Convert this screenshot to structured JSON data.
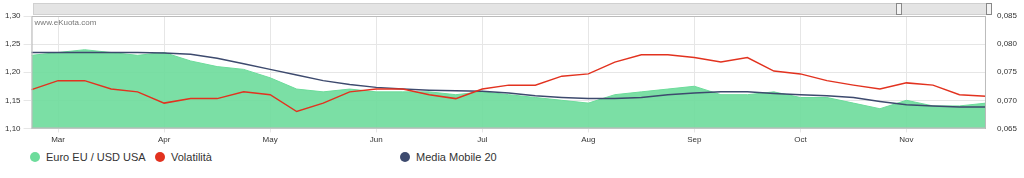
{
  "chart_data": {
    "type": "line",
    "annotation": "www.eKuota.com",
    "categories": [
      null,
      "Mar",
      null,
      null,
      null,
      "Apr",
      null,
      null,
      null,
      "May",
      null,
      null,
      null,
      "Jun",
      null,
      null,
      null,
      "Jul",
      null,
      null,
      null,
      "Aug",
      null,
      null,
      null,
      "Sep",
      null,
      null,
      null,
      "Oct",
      null,
      null,
      null,
      "Nov",
      null,
      null,
      null
    ],
    "series": [
      {
        "name": "Euro EU / USD USA",
        "type": "area",
        "color": "#6ddc9b",
        "values": [
          1.23,
          1.235,
          1.24,
          1.235,
          1.23,
          1.235,
          1.22,
          1.21,
          1.205,
          1.19,
          1.17,
          1.165,
          1.17,
          1.165,
          1.165,
          1.165,
          1.16,
          1.165,
          1.16,
          1.155,
          1.15,
          1.145,
          1.16,
          1.165,
          1.17,
          1.175,
          1.16,
          1.16,
          1.165,
          1.155,
          1.155,
          1.145,
          1.135,
          1.15,
          1.14,
          1.14,
          1.145
        ]
      },
      {
        "name": "Volatilità",
        "type": "line",
        "color": "#e2321f",
        "axis": "y2",
        "values": [
          0.0719,
          0.0735,
          0.0735,
          0.072,
          0.0715,
          0.0695,
          0.0703,
          0.0703,
          0.0715,
          0.071,
          0.068,
          0.0695,
          0.0715,
          0.072,
          0.072,
          0.071,
          0.0703,
          0.072,
          0.0727,
          0.0727,
          0.0743,
          0.0747,
          0.0768,
          0.0781,
          0.0781,
          0.0776,
          0.0768,
          0.0776,
          0.0752,
          0.0747,
          0.0735,
          0.0727,
          0.072,
          0.0731,
          0.0727,
          0.071,
          0.0707
        ]
      },
      {
        "name": "Media Mobile 20",
        "type": "line",
        "color": "#3d4a6e",
        "values": [
          1.235,
          1.235,
          1.235,
          1.235,
          1.235,
          1.234,
          1.232,
          1.225,
          1.215,
          1.205,
          1.195,
          1.185,
          1.178,
          1.173,
          1.17,
          1.168,
          1.167,
          1.166,
          1.163,
          1.158,
          1.155,
          1.153,
          1.153,
          1.155,
          1.16,
          1.163,
          1.165,
          1.165,
          1.162,
          1.16,
          1.158,
          1.155,
          1.148,
          1.142,
          1.14,
          1.138,
          1.138
        ]
      }
    ],
    "ylim": [
      1.1,
      1.3
    ],
    "yticks": [
      {
        "value": 1.1,
        "label": "1,10"
      },
      {
        "value": 1.15,
        "label": "1,15"
      },
      {
        "value": 1.2,
        "label": "1,20"
      },
      {
        "value": 1.25,
        "label": "1,25"
      },
      {
        "value": 1.3,
        "label": "1,30"
      }
    ],
    "y2lim": [
      0.065,
      0.085
    ],
    "y2ticks": [
      {
        "value": 0.065,
        "label": "0,065"
      },
      {
        "value": 0.07,
        "label": "0,070"
      },
      {
        "value": 0.075,
        "label": "0,075"
      },
      {
        "value": 0.08,
        "label": "0,080"
      },
      {
        "value": 0.085,
        "label": "0,085"
      }
    ],
    "grid": true,
    "legend": "bottom"
  }
}
